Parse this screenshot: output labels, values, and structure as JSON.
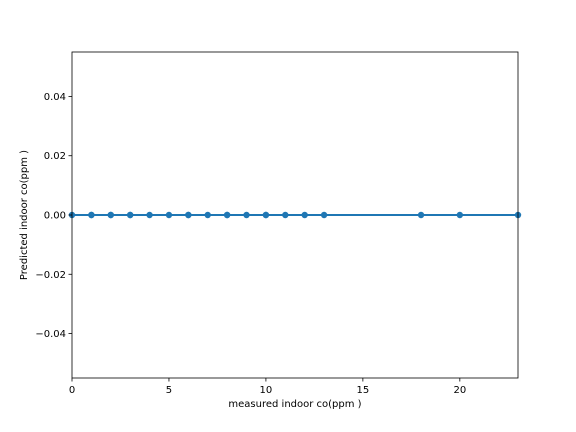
{
  "chart_data": {
    "type": "scatter",
    "title": "",
    "xlabel": "measured indoor co(ppm  )",
    "ylabel": "Predicted indoor co(ppm  )",
    "xlim": [
      0,
      23
    ],
    "ylim": [
      -0.055,
      0.055
    ],
    "x_ticks": [
      0,
      5,
      10,
      15,
      20
    ],
    "y_ticks": [
      -0.04,
      -0.02,
      0.0,
      0.02,
      0.04
    ],
    "x_tick_labels": [
      "0",
      "5",
      "10",
      "15",
      "20"
    ],
    "y_tick_labels": [
      "−0.04",
      "−0.02",
      "0.00",
      "0.02",
      "0.04"
    ],
    "grid": false,
    "series": [
      {
        "x": [
          0,
          1,
          1,
          2,
          2,
          3,
          3,
          4,
          5,
          6,
          6,
          7,
          8,
          8,
          9,
          10,
          10,
          11,
          12,
          13,
          18,
          20,
          23
        ],
        "y": [
          0,
          0,
          0,
          0,
          0,
          0,
          0,
          0,
          0,
          0,
          0,
          0,
          0,
          0,
          0,
          0,
          0,
          0,
          0,
          0,
          0,
          0,
          0
        ],
        "color": "#1f77b4"
      }
    ],
    "fit_line": {
      "x": [
        0,
        23
      ],
      "y": [
        0,
        0
      ],
      "color": "#1f77b4"
    }
  }
}
